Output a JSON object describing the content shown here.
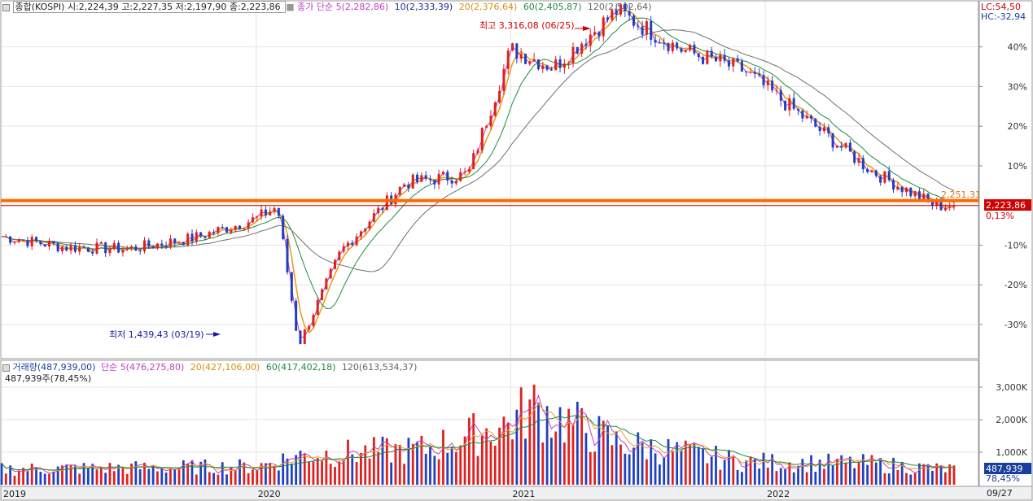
{
  "price_header": {
    "name": "종합(KOSPI)",
    "ohlc": "시:2,224,39 고:2,227,35 저:2,197,90 종:2,223,86",
    "ma_label": "종가 단순",
    "ma5": "5(2,282,86)",
    "ma10": "10(2,333,39)",
    "ma20": "20(2,376,64)",
    "ma60": "60(2,405,87)",
    "ma120": "120(2,502,64)"
  },
  "volume_header": {
    "name": "거래량(487,939,00)",
    "ma_label": "단순",
    "ma5": "5(476,275,80)",
    "ma20": "20(427,106,00)",
    "ma60": "60(417,402,18)",
    "ma120": "120(613,534,37)",
    "current": "487,939주(78,45%)"
  },
  "right_panel": {
    "lc": "LC:54,50",
    "hc": "HC:-32,94",
    "price_box": "2,223,86",
    "price_pct": "0,13%",
    "vol_box": "487,939",
    "vol_pct": "78,45%",
    "date_end": "09/27"
  },
  "annotations": {
    "high": "최고 3,316,08 (06/25)",
    "low": "최저 1,439,43 (03/19)",
    "hline_value": "2,251,31"
  },
  "colors": {
    "up": "#e02020",
    "down": "#2040c0",
    "ma5": "#c040c0",
    "ma20": "#e8a020",
    "ma60": "#208a40",
    "ma120": "#707070",
    "hline": "#ff6a00",
    "last": "#d00000"
  },
  "chart_data": [
    {
      "type": "line",
      "title": "종합(KOSPI)",
      "y_axis": "percent change from last close",
      "y_ticks": [
        "40%",
        "30%",
        "20%",
        "10%",
        "-10%",
        "-20%",
        "-30%"
      ],
      "ylim": [
        -38,
        51
      ],
      "x_ticks": [
        "2019",
        "2020",
        "2021",
        "2022"
      ],
      "x": [
        "2019-01",
        "2019-04",
        "2019-07",
        "2019-10",
        "2020-01",
        "2020-02",
        "2020-03",
        "2020-05",
        "2020-08",
        "2020-11",
        "2021-01",
        "2021-03",
        "2021-06",
        "2021-09",
        "2021-12",
        "2022-03",
        "2022-06",
        "2022-09"
      ],
      "close": [
        2050,
        1990,
        1980,
        2040,
        2150,
        2220,
        1439,
        1970,
        2350,
        2400,
        3100,
        3000,
        3316,
        3100,
        2980,
        2700,
        2420,
        2223
      ],
      "series": [
        {
          "name": "5",
          "last": 2282.86
        },
        {
          "name": "10",
          "last": 2333.39
        },
        {
          "name": "20",
          "last": 2376.64
        },
        {
          "name": "60",
          "last": 2405.87
        },
        {
          "name": "120",
          "last": 2502.64
        }
      ],
      "hline": 2251.31,
      "last_close": 2223.86,
      "high": {
        "value": 3316.08,
        "date": "06/25"
      },
      "low": {
        "value": 1439.43,
        "date": "03/19"
      }
    },
    {
      "type": "bar",
      "title": "거래량",
      "y_ticks": [
        "3,000K",
        "2,000K",
        "1,000K"
      ],
      "ylim": [
        0,
        3700
      ],
      "x": [
        "2019-01",
        "2019-07",
        "2020-01",
        "2020-03",
        "2020-09",
        "2021-01",
        "2021-02",
        "2021-06",
        "2021-12",
        "2022-06",
        "2022-09"
      ],
      "values": [
        480,
        520,
        560,
        900,
        1100,
        1900,
        2400,
        1300,
        700,
        650,
        488
      ],
      "series": [
        {
          "name": "5",
          "last": 476275.8
        },
        {
          "name": "20",
          "last": 427106.0
        },
        {
          "name": "60",
          "last": 417402.18
        },
        {
          "name": "120",
          "last": 613534.37
        }
      ],
      "last": 487939
    }
  ]
}
